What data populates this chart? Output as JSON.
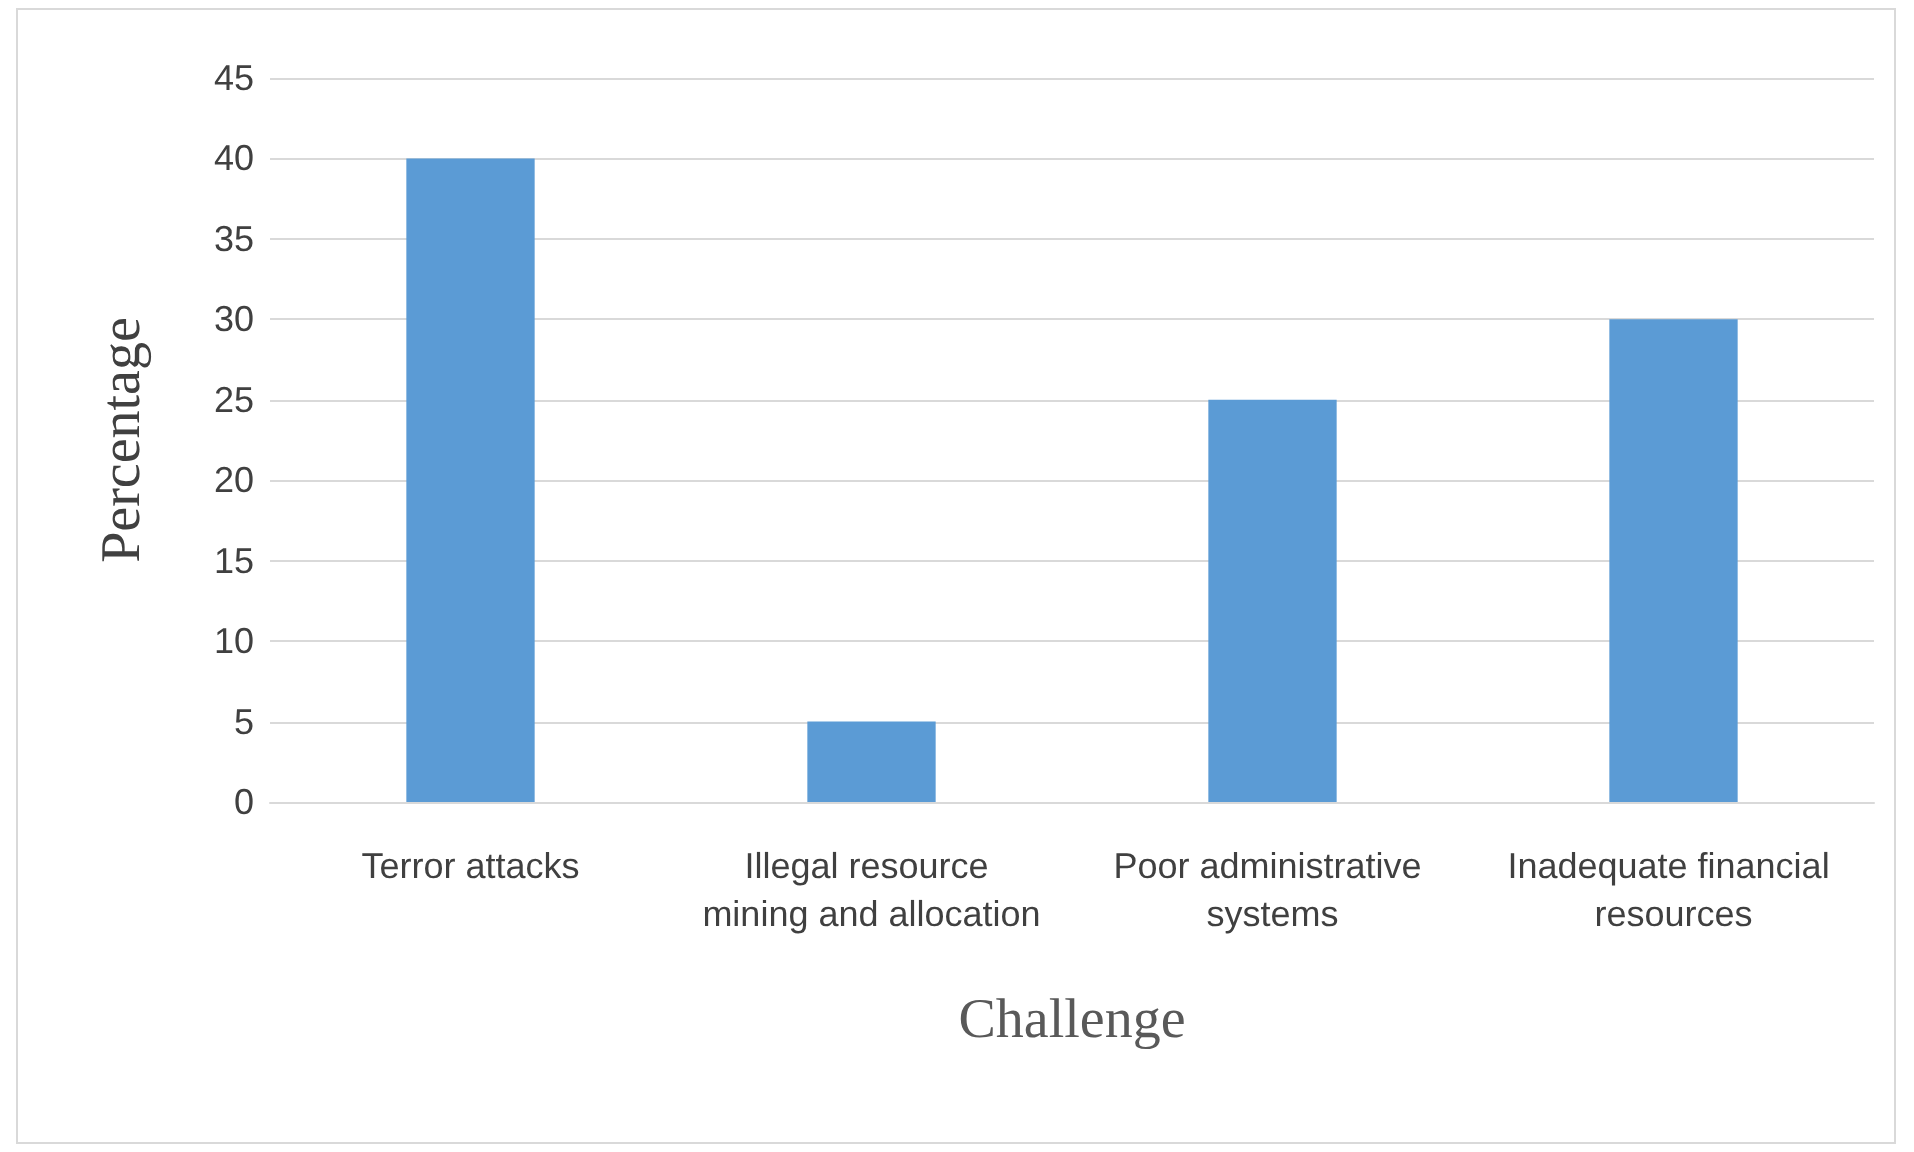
{
  "chart_data": {
    "type": "bar",
    "xlabel": "Challenge",
    "ylabel": "Percentage",
    "categories": [
      "Terror attacks",
      "Illegal resource mining and allocation",
      "Poor administrative systems",
      "Inadequate financial resources"
    ],
    "values": [
      40,
      5,
      25,
      30
    ],
    "color": "#5b9bd5",
    "ylim": [
      0,
      45
    ],
    "yticks": [
      0,
      5,
      10,
      15,
      20,
      25,
      30,
      35,
      40,
      45
    ],
    "grid": "y"
  }
}
